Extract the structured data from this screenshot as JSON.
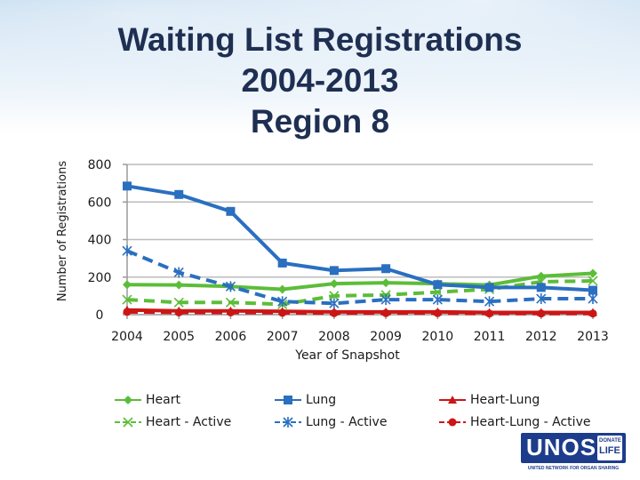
{
  "title": {
    "line1": "Waiting List Registrations",
    "line2": "2004-2013",
    "line3": "Region 8"
  },
  "colors": {
    "green": "#5cbd39",
    "blue": "#2a6fc0",
    "red": "#cc1616",
    "grid": "#bcbcbc"
  },
  "chart_data": {
    "type": "line",
    "title": "Waiting List Registrations 2004-2013 Region 8",
    "xlabel": "Year of Snapshot",
    "ylabel": "Number of Registrations",
    "categories": [
      "2004",
      "2005",
      "2006",
      "2007",
      "2008",
      "2009",
      "2010",
      "2011",
      "2012",
      "2013"
    ],
    "ylim": [
      0,
      800
    ],
    "yticks": [
      "0",
      "200",
      "400",
      "600",
      "800"
    ],
    "grid": true,
    "legend_position": "bottom",
    "series": [
      {
        "name": "Heart",
        "color": "#5cbd39",
        "style": "solid",
        "marker": "diamond",
        "values": [
          160,
          158,
          150,
          135,
          165,
          170,
          165,
          158,
          205,
          220
        ]
      },
      {
        "name": "Heart - Active",
        "color": "#5cbd39",
        "style": "dashed",
        "marker": "x",
        "values": [
          80,
          65,
          65,
          55,
          100,
          105,
          120,
          135,
          175,
          180
        ]
      },
      {
        "name": "Lung",
        "color": "#2a6fc0",
        "style": "solid",
        "marker": "square",
        "values": [
          685,
          640,
          550,
          275,
          235,
          245,
          160,
          145,
          145,
          130
        ]
      },
      {
        "name": "Lung - Active",
        "color": "#2a6fc0",
        "style": "dashed",
        "marker": "asterisk",
        "values": [
          340,
          225,
          150,
          70,
          60,
          80,
          80,
          70,
          85,
          85
        ]
      },
      {
        "name": "Heart-Lung",
        "color": "#cc1616",
        "style": "solid",
        "marker": "triangle",
        "values": [
          25,
          20,
          20,
          18,
          15,
          15,
          15,
          12,
          12,
          12
        ]
      },
      {
        "name": "Heart-Lung - Active",
        "color": "#cc1616",
        "style": "dashed",
        "marker": "circle",
        "values": [
          15,
          12,
          12,
          10,
          8,
          8,
          8,
          6,
          6,
          6
        ]
      }
    ]
  },
  "logo": {
    "main": "UNOS",
    "side_line1": "DONATE",
    "side_line2": "LIFE",
    "tagline": "UNITED NETWORK FOR ORGAN SHARING"
  }
}
